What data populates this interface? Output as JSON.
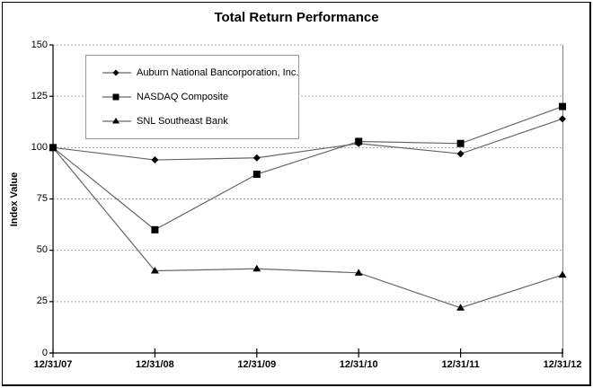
{
  "chart_data": {
    "type": "line",
    "title": "Total Return Performance",
    "xlabel": "",
    "ylabel": "Index Value",
    "categories": [
      "12/31/07",
      "12/31/08",
      "12/31/09",
      "12/31/10",
      "12/31/11",
      "12/31/12"
    ],
    "series": [
      {
        "name": "Auburn National Bancorporation, Inc.",
        "marker": "diamond",
        "values": [
          100,
          94,
          95,
          102,
          97,
          114
        ]
      },
      {
        "name": "NASDAQ Composite",
        "marker": "square",
        "values": [
          100,
          60,
          87,
          103,
          102,
          120
        ]
      },
      {
        "name": "SNL Southeast Bank",
        "marker": "triangle",
        "values": [
          100,
          40,
          41,
          39,
          22,
          38
        ]
      }
    ],
    "ylim": [
      0,
      150
    ],
    "y_ticks": [
      0,
      25,
      50,
      75,
      100,
      125,
      150
    ],
    "grid": "horizontal-dashed",
    "legend_position": "top-left-inside"
  },
  "colors": {
    "background": "#ffffff",
    "series_line": "#666666",
    "marker_fill": "#000000",
    "gridline": "#aaaaaa",
    "axis": "#000000",
    "plot_right_border": "#808080",
    "legend_border": "#999999",
    "outer_border": "#000000",
    "text": "#000000"
  }
}
